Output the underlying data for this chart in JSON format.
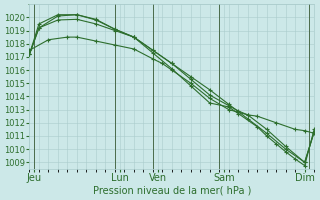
{
  "title": "Pression niveau de la mer( hPa )",
  "bg_color": "#cce8e8",
  "grid_color": "#aacccc",
  "line_color": "#2d6e2d",
  "ylim": [
    1008.5,
    1021.0
  ],
  "yticks": [
    1009,
    1010,
    1011,
    1012,
    1013,
    1014,
    1015,
    1016,
    1017,
    1018,
    1019,
    1020
  ],
  "xlim": [
    0,
    30
  ],
  "xtick_labels": [
    "Jeu",
    "Lun",
    "Ven",
    "Sam",
    "Dim"
  ],
  "xtick_positions": [
    0.5,
    9.5,
    13.5,
    20.5,
    29.0
  ],
  "vline_positions": [
    0.5,
    9.0,
    13.0,
    20.0,
    29.5
  ],
  "lines": [
    {
      "x": [
        0,
        1,
        3,
        5,
        7,
        9,
        11,
        13,
        15,
        17,
        19,
        21,
        23,
        25,
        27,
        29,
        30
      ],
      "y": [
        1017.2,
        1019.2,
        1019.8,
        1019.85,
        1019.5,
        1019.0,
        1018.5,
        1017.5,
        1016.5,
        1015.5,
        1014.5,
        1013.4,
        1012.3,
        1011.2,
        1010.0,
        1009.0,
        1011.3
      ],
      "markers": [
        0,
        1,
        3,
        5,
        7,
        9,
        11,
        13,
        15,
        17,
        19,
        21,
        23,
        25,
        27,
        29,
        30
      ]
    },
    {
      "x": [
        0,
        1,
        3,
        5,
        7,
        9,
        11,
        13,
        15,
        17,
        19,
        21,
        22,
        23,
        25,
        27,
        29,
        30
      ],
      "y": [
        1017.2,
        1019.5,
        1020.2,
        1020.2,
        1019.85,
        1019.1,
        1018.5,
        1017.5,
        1016.5,
        1015.3,
        1014.1,
        1013.3,
        1012.9,
        1012.6,
        1011.5,
        1010.2,
        1009.0,
        1011.3
      ],
      "markers": [
        0,
        1,
        3,
        5,
        7,
        9,
        11,
        13,
        15,
        17,
        19,
        21,
        23,
        25,
        27,
        29,
        30
      ]
    },
    {
      "x": [
        0,
        2,
        4,
        5,
        7,
        9,
        11,
        13,
        14,
        15,
        17,
        19,
        21,
        22,
        23,
        24,
        26,
        28,
        29,
        30
      ],
      "y": [
        1017.5,
        1018.3,
        1018.5,
        1018.5,
        1018.2,
        1017.9,
        1017.6,
        1016.85,
        1016.5,
        1016.0,
        1015.0,
        1013.85,
        1013.0,
        1012.8,
        1012.6,
        1012.5,
        1012.0,
        1011.5,
        1011.4,
        1011.2
      ],
      "markers": [
        0,
        2,
        4,
        5,
        7,
        9,
        11,
        13,
        15,
        17,
        19,
        21,
        22,
        24,
        26,
        28,
        29,
        30
      ]
    },
    {
      "x": [
        0,
        1,
        3,
        5,
        7,
        9,
        11,
        13,
        15,
        17,
        19,
        21,
        22,
        24,
        25,
        26,
        27,
        28,
        29,
        30
      ],
      "y": [
        1017.2,
        1019.2,
        1020.1,
        1020.2,
        1019.8,
        1019.1,
        1018.5,
        1017.3,
        1016.1,
        1014.8,
        1013.5,
        1013.2,
        1012.7,
        1011.7,
        1011.0,
        1010.4,
        1009.8,
        1009.25,
        1008.75,
        1011.5
      ],
      "markers": [
        0,
        1,
        3,
        5,
        7,
        9,
        11,
        13,
        15,
        17,
        19,
        21,
        22,
        24,
        25,
        27,
        29,
        30
      ]
    }
  ],
  "xlabel_fontsize": 7,
  "ylabel_fontsize": 6
}
